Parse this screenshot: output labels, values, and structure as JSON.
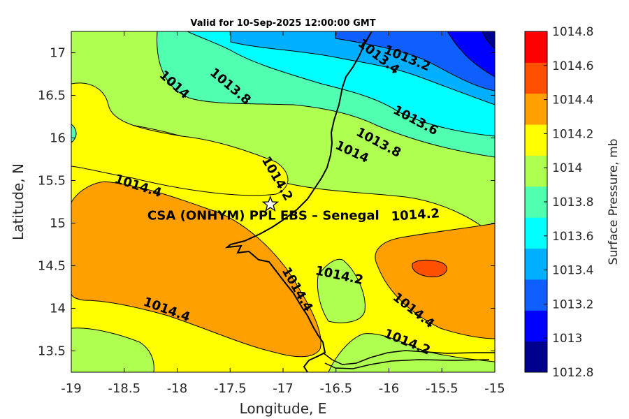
{
  "chart_data": {
    "type": "heatmap",
    "subtype": "filled-contour map",
    "title": "Valid for 10-Sep-2025 12:00:00 GMT",
    "xlabel": "Longitude, E",
    "ylabel": "Latitude, N",
    "xlim": [
      -19,
      -15
    ],
    "ylim": [
      13.25,
      17.25
    ],
    "xticks": [
      -19,
      -18.5,
      -18,
      -17.5,
      -17,
      -16.5,
      -16,
      -15.5,
      -15
    ],
    "yticks": [
      13.5,
      14,
      14.5,
      15,
      15.5,
      16,
      16.5,
      17
    ],
    "grid": false,
    "colorbar": {
      "label": "Surface Pressure, mb",
      "levels": [
        1012.8,
        1013,
        1013.2,
        1013.4,
        1013.6,
        1013.8,
        1014,
        1014.2,
        1014.4,
        1014.6,
        1014.8
      ],
      "tick_labels": [
        "1012.8",
        "1013",
        "1013.2",
        "1013.4",
        "1013.6",
        "1013.8",
        "1014",
        "1014.2",
        "1014.4",
        "1014.6",
        "1014.8"
      ],
      "colors": [
        "#00008f",
        "#0000ff",
        "#0f5fff",
        "#00afff",
        "#00ffff",
        "#50ffaf",
        "#afff50",
        "#ffff00",
        "#ffa000",
        "#ff5000",
        "#ff0000"
      ]
    },
    "contour_labels": [
      {
        "text": "1013.2",
        "lon": -15.83,
        "lat": 16.93,
        "angle": 22
      },
      {
        "text": "1013.4",
        "lon": -16.1,
        "lat": 16.95,
        "angle": 38
      },
      {
        "text": "1013.6",
        "lon": -15.75,
        "lat": 16.2,
        "angle": 28
      },
      {
        "text": "1013.8",
        "lon": -17.5,
        "lat": 16.6,
        "angle": 40
      },
      {
        "text": "1013.8",
        "lon": -16.1,
        "lat": 15.94,
        "angle": 28
      },
      {
        "text": "1014",
        "lon": -18.03,
        "lat": 16.62,
        "angle": 42
      },
      {
        "text": "1014",
        "lon": -16.35,
        "lat": 15.83,
        "angle": 25
      },
      {
        "text": "1014.2",
        "lon": -17.06,
        "lat": 15.52,
        "angle": 60
      },
      {
        "text": "1014.2",
        "lon": -15.75,
        "lat": 15.09,
        "angle": -4
      },
      {
        "text": "1014.2",
        "lon": -16.47,
        "lat": 14.38,
        "angle": 12
      },
      {
        "text": "1014.2",
        "lon": -15.83,
        "lat": 13.6,
        "angle": 22
      },
      {
        "text": "1014.4",
        "lon": -18.37,
        "lat": 15.43,
        "angle": 18
      },
      {
        "text": "1014.4",
        "lon": -18.1,
        "lat": 13.98,
        "angle": 20
      },
      {
        "text": "1014.4",
        "lon": -15.77,
        "lat": 13.97,
        "angle": 38
      },
      {
        "text": "1014.4",
        "lon": -16.87,
        "lat": 14.22,
        "angle": 60
      }
    ],
    "site": {
      "name": "CSA (ONHYM) PPL EBS  – Senegal",
      "lon": -17.12,
      "lat": 15.22,
      "marker": "star"
    }
  }
}
